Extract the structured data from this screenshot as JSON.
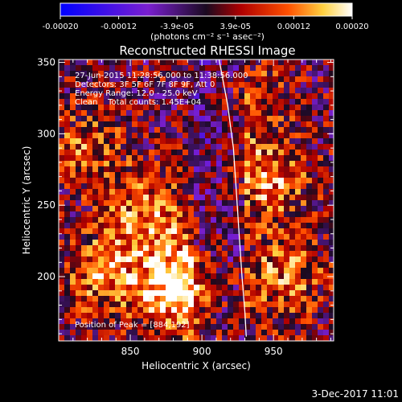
{
  "chart_data": {
    "type": "heatmap",
    "title": "Reconstructed RHESSI Image",
    "xlabel": "Heliocentric X (arcsec)",
    "ylabel": "Heliocentric Y (arcsec)",
    "xlim": [
      800,
      992
    ],
    "ylim": [
      155,
      352
    ],
    "x_ticks": [
      "850",
      "900",
      "950"
    ],
    "y_ticks": [
      "200",
      "250",
      "300",
      "350"
    ],
    "colorbar": {
      "range": [
        -0.0002,
        0.0002
      ],
      "ticks": [
        "-0.00020",
        "-0.00012",
        "-3.9e-05",
        "3.9e-05",
        "0.00012",
        "0.00020"
      ],
      "units": "(photons cm⁻² s⁻¹ asec⁻²)",
      "colors": [
        "#0000ff",
        "#7a1fd0",
        "#1a0a20",
        "#b00000",
        "#ff5000",
        "#ffd040",
        "#ffffff"
      ]
    },
    "annotations": [
      "27-Jun-2015 11:28:56.000 to 11:38:56.000",
      "Detectors: 3F 5F 6F 7F 8F 9F, Att 0",
      "Energy Range: 12.0 - 25.0 keV",
      "Clean    Total counts: 1.45E+04"
    ],
    "peak_text": "Position of Peak = [884,192]",
    "peak": [
      884,
      192
    ],
    "limb_curve": [
      [
        912,
        352
      ],
      [
        918,
        320
      ],
      [
        922,
        290
      ],
      [
        924,
        260
      ],
      [
        926,
        230
      ],
      [
        928,
        200
      ],
      [
        930,
        175
      ],
      [
        931,
        158
      ]
    ]
  },
  "footer": {
    "timestamp": "3-Dec-2017 11:01"
  }
}
